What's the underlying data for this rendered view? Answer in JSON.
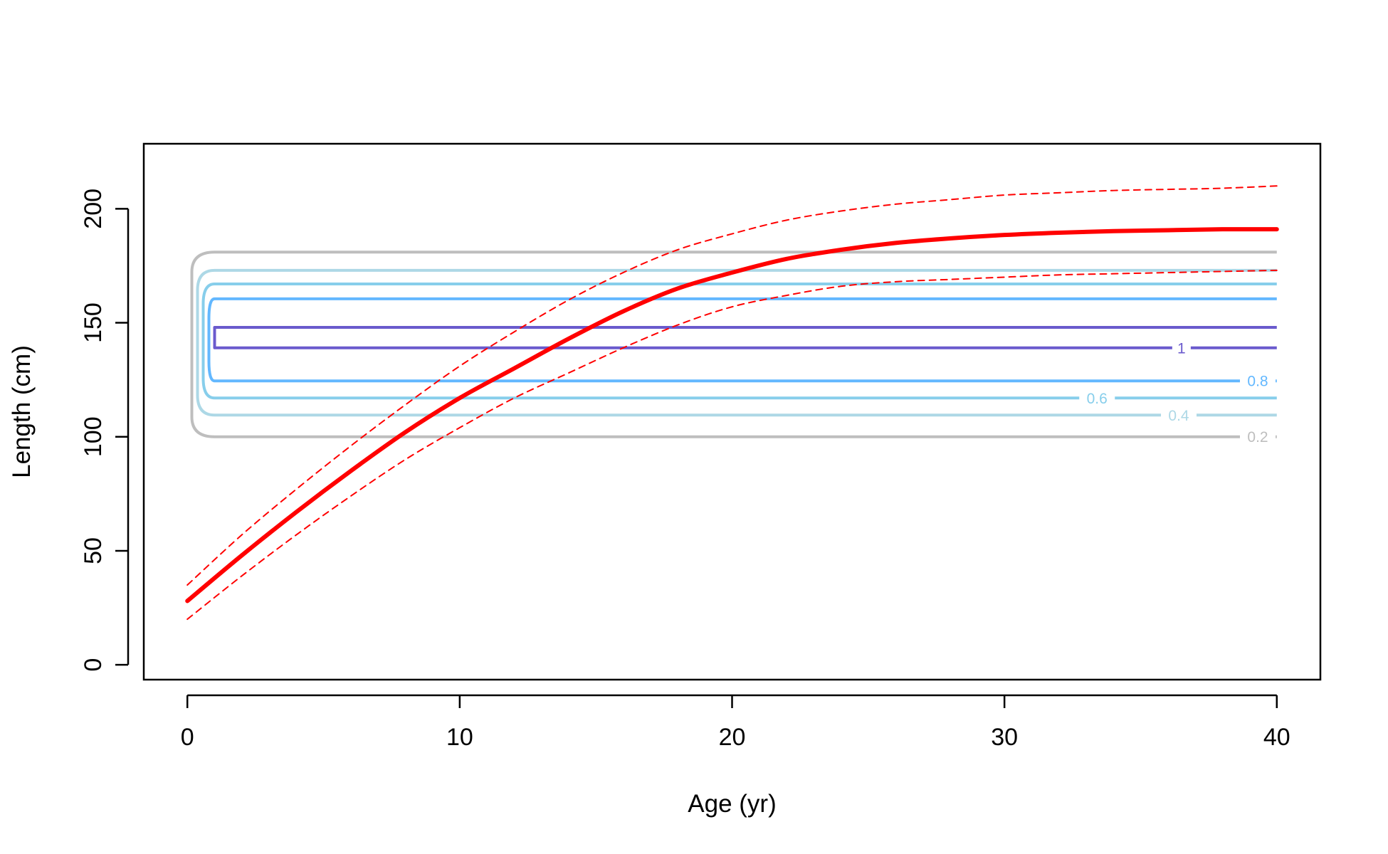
{
  "chart_data": {
    "type": "line",
    "title": "",
    "xlabel": "Age (yr)",
    "ylabel": "Length (cm)",
    "xlim": [
      -1.6,
      41.6
    ],
    "ylim": [
      -6.5,
      228.5
    ],
    "x_ticks": [
      0,
      10,
      20,
      30,
      40
    ],
    "y_ticks": [
      0,
      50,
      100,
      150,
      200
    ],
    "grid": false,
    "legend": "none",
    "series": [
      {
        "role": "mean",
        "color": "#ff0000",
        "style": "solid-thick",
        "x": [
          0,
          2,
          4,
          6,
          8,
          10,
          12,
          14,
          16,
          18,
          20,
          22,
          24,
          26,
          28,
          30,
          32,
          34,
          36,
          38,
          40
        ],
        "y": [
          28,
          48,
          67,
          85,
          102,
          117,
          130,
          143,
          155,
          165,
          172,
          178,
          182,
          185,
          187,
          188.5,
          189.5,
          190.2,
          190.6,
          191,
          191
        ]
      },
      {
        "role": "upper",
        "color": "#ff0000",
        "style": "dashed",
        "x": [
          0,
          2,
          4,
          6,
          8,
          10,
          12,
          14,
          16,
          18,
          20,
          22,
          24,
          26,
          28,
          30,
          32,
          34,
          36,
          38,
          40
        ],
        "y": [
          35,
          57,
          77,
          96,
          114,
          131,
          146,
          160,
          172,
          182,
          189,
          195,
          199,
          202,
          204,
          206,
          207,
          208,
          208.5,
          209,
          210
        ]
      },
      {
        "role": "lower",
        "color": "#ff0000",
        "style": "dashed",
        "x": [
          0,
          2,
          4,
          6,
          8,
          10,
          12,
          14,
          16,
          18,
          20,
          22,
          24,
          26,
          28,
          30,
          32,
          34,
          36,
          38,
          40
        ],
        "y": [
          20,
          39,
          57,
          74,
          90,
          104,
          117,
          128,
          139,
          149,
          157,
          162,
          166,
          168,
          169,
          170,
          171,
          171.5,
          172,
          172.5,
          173
        ]
      }
    ],
    "contours": [
      {
        "label": "0.2",
        "color": "#bebebe",
        "y_low": 100,
        "y_high": 181,
        "x_min": 1,
        "x_max": 40,
        "label_x": 39.3,
        "label_y": 100
      },
      {
        "label": "0.4",
        "color": "#add8e6",
        "y_low": 109.5,
        "y_high": 173,
        "x_min": 1,
        "x_max": 40,
        "label_x": 36.4,
        "label_y": 109.5
      },
      {
        "label": "0.6",
        "color": "#87ceeb",
        "y_low": 117,
        "y_high": 167,
        "x_min": 1,
        "x_max": 40,
        "label_x": 33.4,
        "label_y": 117
      },
      {
        "label": "0.8",
        "color": "#63b8ff",
        "y_low": 124.5,
        "y_high": 160.5,
        "x_min": 1,
        "x_max": 40,
        "label_x": 39.3,
        "label_y": 124.5
      },
      {
        "label": "1",
        "color": "#6a5acd",
        "y_low": 139,
        "y_high": 148,
        "x_min": 1,
        "x_max": 40,
        "label_x": 36.5,
        "label_y": 139
      }
    ]
  }
}
